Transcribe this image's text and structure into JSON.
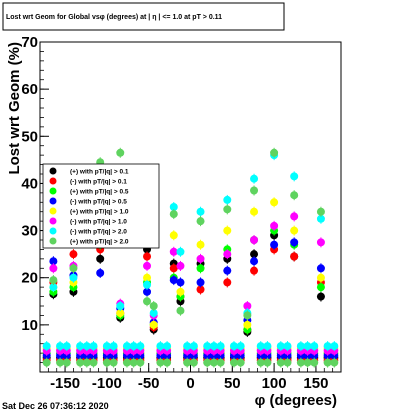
{
  "chart_data": {
    "type": "scatter",
    "title": "Lost wrt Geom for Global vsφ (degrees) at | η | <= 1.0 at pT > 0.11",
    "xlabel": "φ (degrees)",
    "ylabel": "Lost  wrt  Geom (%)",
    "xlim": [
      -180,
      180
    ],
    "ylim": [
      0,
      70
    ],
    "x_ticks": [
      -150,
      -100,
      -50,
      0,
      50,
      100,
      150
    ],
    "y_ticks": [
      10,
      20,
      30,
      40,
      50,
      60,
      70
    ],
    "legend_position": "left",
    "timestamp": "Sat Dec 26 07:36:12 2020",
    "series": [
      {
        "name": "(+) with pT/|q| > 0.1",
        "color": "#000000",
        "x": [
          -172,
          -164,
          -156,
          -148,
          -140,
          -132,
          -124,
          -116,
          -108,
          -100,
          -92,
          -84,
          -76,
          -68,
          -60,
          -52,
          -44,
          -36,
          -28,
          -20,
          -12,
          -4,
          4,
          12,
          20,
          28,
          36,
          44,
          52,
          60,
          68,
          76,
          84,
          92,
          100,
          108,
          116,
          124,
          132,
          140,
          148,
          156,
          164,
          172
        ],
        "y": [
          3,
          16.5,
          3,
          3,
          17,
          3,
          2.5,
          3,
          24,
          3,
          3,
          11.5,
          3,
          3,
          3,
          26,
          9,
          3,
          3,
          23,
          15,
          3,
          3,
          23,
          3,
          3,
          3,
          24,
          3,
          3,
          8.5,
          25,
          3,
          3,
          29,
          3,
          3,
          24.5,
          3,
          3,
          3,
          16,
          3,
          3
        ]
      },
      {
        "name": "(-) with pT/|q| > 0.1",
        "color": "#ff0000",
        "x": [
          -172,
          -164,
          -156,
          -148,
          -140,
          -132,
          -124,
          -116,
          -108,
          -100,
          -92,
          -84,
          -76,
          -68,
          -60,
          -52,
          -44,
          -36,
          -28,
          -20,
          -12,
          -4,
          4,
          12,
          20,
          28,
          36,
          44,
          52,
          60,
          68,
          76,
          84,
          92,
          100,
          108,
          116,
          124,
          132,
          140,
          148,
          156,
          164,
          172
        ],
        "y": [
          2.5,
          19,
          2.5,
          2.5,
          25,
          2.5,
          2.5,
          2.5,
          26,
          2.5,
          2.5,
          12.5,
          2.5,
          2.5,
          2.5,
          24.5,
          9.5,
          2.5,
          2.5,
          22,
          16,
          2.5,
          2.5,
          17.5,
          2.5,
          2.5,
          2.5,
          19,
          2.5,
          2.5,
          9,
          21.5,
          2.5,
          2.5,
          26,
          2.5,
          2.5,
          24.5,
          2.5,
          2.5,
          2.5,
          19,
          2.5,
          2.5
        ]
      },
      {
        "name": "(+) with pT/|q| > 0.5",
        "color": "#00ff00",
        "x": [
          -172,
          -164,
          -156,
          -148,
          -140,
          -132,
          -124,
          -116,
          -108,
          -100,
          -92,
          -84,
          -76,
          -68,
          -60,
          -52,
          -44,
          -36,
          -28,
          -20,
          -12,
          -4,
          4,
          12,
          20,
          28,
          36,
          44,
          52,
          60,
          68,
          76,
          84,
          92,
          100,
          108,
          116,
          124,
          132,
          140,
          148,
          156,
          164,
          172
        ],
        "y": [
          4,
          17,
          4,
          4,
          18,
          4,
          4,
          4,
          27,
          4,
          4,
          12,
          4,
          4,
          4,
          19,
          10,
          4,
          4,
          20,
          16,
          4,
          4,
          22,
          4,
          4,
          4,
          26,
          4,
          4,
          9,
          28,
          4,
          4,
          30,
          4,
          4,
          27,
          4,
          4,
          4,
          18,
          4,
          4
        ]
      },
      {
        "name": "(-) with pT/|q| > 0.5",
        "color": "#0000ff",
        "x": [
          -172,
          -164,
          -156,
          -148,
          -140,
          -132,
          -124,
          -116,
          -108,
          -100,
          -92,
          -84,
          -76,
          -68,
          -60,
          -52,
          -44,
          -36,
          -28,
          -20,
          -12,
          -4,
          4,
          12,
          20,
          28,
          36,
          44,
          52,
          60,
          68,
          76,
          84,
          92,
          100,
          108,
          116,
          124,
          132,
          140,
          148,
          156,
          164,
          172
        ],
        "y": [
          3.5,
          23.5,
          3.5,
          3.5,
          20.5,
          3.5,
          3.5,
          3.5,
          21,
          3.5,
          3.5,
          13.5,
          3.5,
          3.5,
          3.5,
          17,
          10.5,
          3.5,
          3.5,
          19.5,
          19,
          3.5,
          3.5,
          19,
          3.5,
          3.5,
          3.5,
          21.5,
          3.5,
          3.5,
          11,
          23.5,
          3.5,
          3.5,
          27,
          3.5,
          3.5,
          27.5,
          3.5,
          3.5,
          3.5,
          22,
          3.5,
          3.5
        ]
      },
      {
        "name": "(+) with pT/|q| > 1.0",
        "color": "#ffff00",
        "x": [
          -172,
          -164,
          -156,
          -148,
          -140,
          -132,
          -124,
          -116,
          -108,
          -100,
          -92,
          -84,
          -76,
          -68,
          -60,
          -52,
          -44,
          -36,
          -28,
          -20,
          -12,
          -4,
          4,
          12,
          20,
          28,
          36,
          44,
          52,
          60,
          68,
          76,
          84,
          92,
          100,
          108,
          116,
          124,
          132,
          140,
          148,
          156,
          164,
          172
        ],
        "y": [
          5,
          18,
          5,
          5,
          19,
          5,
          5,
          5,
          28,
          5,
          5,
          12.5,
          5,
          5,
          5,
          20,
          10,
          5,
          5,
          29,
          17,
          5,
          5,
          27,
          5,
          5,
          5,
          30,
          5,
          5,
          10,
          34,
          5,
          5,
          36,
          5,
          5,
          30,
          5,
          5,
          5,
          20,
          5,
          5
        ]
      },
      {
        "name": "(-) with pT/|q| > 1.0",
        "color": "#ff00ff",
        "x": [
          -172,
          -164,
          -156,
          -148,
          -140,
          -132,
          -124,
          -116,
          -108,
          -100,
          -92,
          -84,
          -76,
          -68,
          -60,
          -52,
          -44,
          -36,
          -28,
          -20,
          -12,
          -4,
          4,
          12,
          20,
          28,
          36,
          44,
          52,
          60,
          68,
          76,
          84,
          92,
          100,
          108,
          116,
          124,
          132,
          140,
          148,
          156,
          164,
          172
        ],
        "y": [
          4.5,
          22,
          4.5,
          4.5,
          22.5,
          4.5,
          4.5,
          4.5,
          30,
          4.5,
          4.5,
          14.5,
          4.5,
          4.5,
          4.5,
          22.5,
          12,
          4.5,
          4.5,
          25.5,
          22.5,
          4.5,
          4.5,
          24,
          4.5,
          4.5,
          4.5,
          25,
          4.5,
          4.5,
          14,
          28,
          4.5,
          4.5,
          31,
          4.5,
          4.5,
          33,
          4.5,
          4.5,
          4.5,
          27.5,
          4.5,
          4.5
        ]
      },
      {
        "name": "(-) with pT/|q| > 2.0",
        "color": "#00ffff",
        "x": [
          -172,
          -164,
          -156,
          -148,
          -140,
          -132,
          -124,
          -116,
          -108,
          -100,
          -92,
          -84,
          -76,
          -68,
          -60,
          -52,
          -44,
          -36,
          -28,
          -20,
          -12,
          -4,
          4,
          12,
          20,
          28,
          36,
          44,
          52,
          60,
          68,
          76,
          84,
          92,
          100,
          108,
          116,
          124,
          132,
          140,
          148,
          156,
          164,
          172
        ],
        "y": [
          5.5,
          18,
          5.5,
          5.5,
          20,
          5.5,
          5.5,
          5.5,
          29.5,
          5.5,
          5.5,
          14,
          5.5,
          5.5,
          5.5,
          18.5,
          12.5,
          5.5,
          5.5,
          35,
          25.5,
          5.5,
          5.5,
          34,
          5.5,
          5.5,
          5.5,
          36.5,
          5.5,
          5.5,
          12.5,
          41,
          5.5,
          5.5,
          46,
          5.5,
          5.5,
          41.5,
          5.5,
          5.5,
          5.5,
          32.5,
          5.5,
          5.5
        ]
      },
      {
        "name": "(+) with pT/|q| > 2.0",
        "color": "#5fd35f",
        "x": [
          -172,
          -164,
          -156,
          -148,
          -140,
          -132,
          -124,
          -116,
          -108,
          -100,
          -92,
          -84,
          -76,
          -68,
          -60,
          -52,
          -44,
          -36,
          -28,
          -20,
          -12,
          -4,
          4,
          12,
          20,
          28,
          36,
          44,
          52,
          60,
          68,
          76,
          84,
          92,
          100,
          108,
          116,
          124,
          132,
          140,
          148,
          156,
          164,
          172
        ],
        "y": [
          2,
          19.5,
          2,
          2,
          22,
          2,
          2,
          2,
          44.5,
          2,
          2,
          46.5,
          2,
          2,
          2,
          15,
          14,
          2,
          2,
          33.5,
          13,
          2,
          2,
          32,
          2,
          2,
          2,
          34.5,
          2,
          2,
          12,
          38.5,
          2,
          2,
          46.5,
          2,
          2,
          37.5,
          2,
          2,
          2,
          34,
          2,
          2
        ]
      }
    ]
  }
}
